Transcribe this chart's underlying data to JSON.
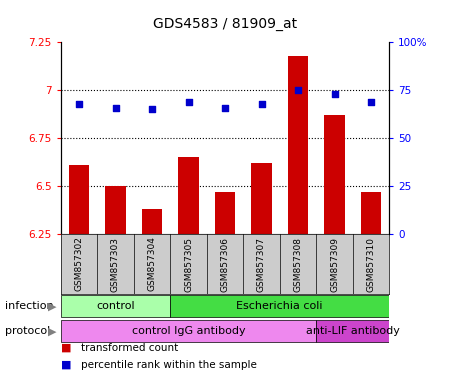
{
  "title": "GDS4583 / 81909_at",
  "samples": [
    "GSM857302",
    "GSM857303",
    "GSM857304",
    "GSM857305",
    "GSM857306",
    "GSM857307",
    "GSM857308",
    "GSM857309",
    "GSM857310"
  ],
  "transformed_counts": [
    6.61,
    6.5,
    6.38,
    6.65,
    6.47,
    6.62,
    7.18,
    6.87,
    6.47
  ],
  "percentile_ranks": [
    68,
    66,
    65,
    69,
    66,
    68,
    75,
    73,
    69
  ],
  "bar_color": "#cc0000",
  "dot_color": "#0000cc",
  "ylim_left": [
    6.25,
    7.25
  ],
  "ylim_right": [
    0,
    100
  ],
  "yticks_left": [
    6.25,
    6.5,
    6.75,
    7.0,
    7.25
  ],
  "ytick_labels_left": [
    "6.25",
    "6.5",
    "6.75",
    "7",
    "7.25"
  ],
  "yticks_right": [
    0,
    25,
    50,
    75,
    100
  ],
  "ytick_labels_right": [
    "0",
    "25",
    "50",
    "75",
    "100%"
  ],
  "hlines": [
    6.5,
    6.75,
    7.0
  ],
  "infection_groups": [
    {
      "label": "control",
      "start": 0,
      "end": 3,
      "color": "#aaffaa"
    },
    {
      "label": "Escherichia coli",
      "start": 3,
      "end": 9,
      "color": "#44dd44"
    }
  ],
  "protocol_groups": [
    {
      "label": "control IgG antibody",
      "start": 0,
      "end": 7,
      "color": "#ee88ee"
    },
    {
      "label": "anti-LIF antibody",
      "start": 7,
      "end": 9,
      "color": "#cc44cc"
    }
  ],
  "legend_items": [
    {
      "label": "transformed count",
      "color": "#cc0000"
    },
    {
      "label": "percentile rank within the sample",
      "color": "#0000cc"
    }
  ],
  "infection_label": "infection",
  "protocol_label": "protocol",
  "tick_label_area_color": "#cccccc"
}
